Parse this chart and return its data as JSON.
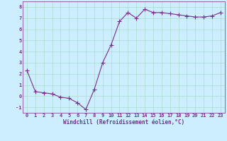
{
  "x": [
    0,
    1,
    2,
    3,
    4,
    5,
    6,
    7,
    8,
    9,
    10,
    11,
    12,
    13,
    14,
    15,
    16,
    17,
    18,
    19,
    20,
    21,
    22,
    23
  ],
  "y": [
    2.3,
    0.4,
    0.3,
    0.2,
    -0.1,
    -0.2,
    -0.6,
    -1.2,
    0.6,
    3.0,
    4.6,
    6.7,
    7.5,
    7.0,
    7.8,
    7.5,
    7.5,
    7.4,
    7.3,
    7.2,
    7.1,
    7.1,
    7.2,
    7.5
  ],
  "line_color": "#7B2D8B",
  "marker": "+",
  "marker_size": 4,
  "bg_color": "#cceeff",
  "grid_color": "#aaddcc",
  "xlabel": "Windchill (Refroidissement éolien,°C)",
  "xlabel_color": "#7B2D8B",
  "tick_color": "#7B2D8B",
  "ylim": [
    -1.5,
    8.5
  ],
  "xlim": [
    -0.5,
    23.5
  ],
  "yticks": [
    -1,
    0,
    1,
    2,
    3,
    4,
    5,
    6,
    7,
    8
  ],
  "xticks": [
    0,
    1,
    2,
    3,
    4,
    5,
    6,
    7,
    8,
    9,
    10,
    11,
    12,
    13,
    14,
    15,
    16,
    17,
    18,
    19,
    20,
    21,
    22,
    23
  ],
  "label_fontsize": 5.0,
  "tick_fontsize": 5.0,
  "xlabel_fontsize": 5.5
}
